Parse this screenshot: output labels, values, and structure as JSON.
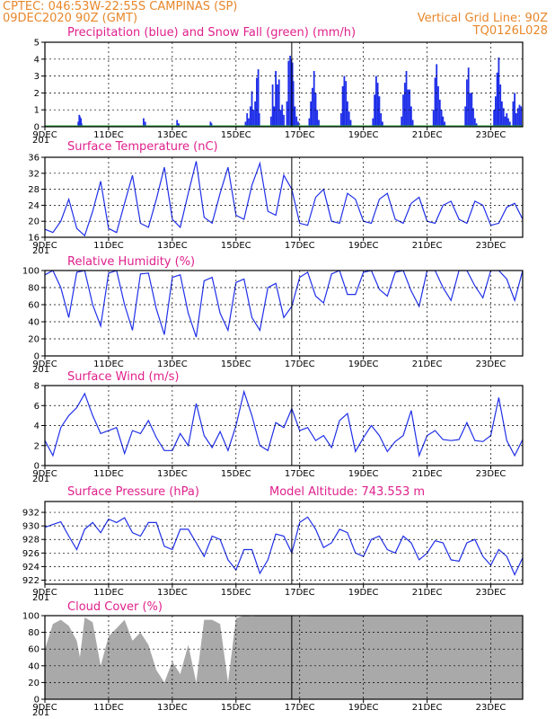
{
  "header": {
    "line1": "CPTEC:   046:53W-22:55S   CAMPINAS (SP)",
    "line2_left": "09DEC2020 90Z (GMT)",
    "line2_right": "Vertical Grid Line: 90Z",
    "line3_right": "TQ0126L028"
  },
  "colors": {
    "series": "#1f2fe8",
    "snow": "#21a83a",
    "cloud": "#a9a9a9",
    "title": "#e0208c",
    "header": "#e8872a"
  },
  "x_ticks": [
    "9DEC",
    "11DEC",
    "13DEC",
    "15DEC",
    "17DEC",
    "19DEC",
    "21DEC",
    "23DEC"
  ],
  "x_tick_days": [
    0,
    2,
    4,
    6,
    8,
    10,
    12,
    14
  ],
  "cut_label": "201",
  "vertical_marker_day": 7.75,
  "chart_data": [
    {
      "type": "bar",
      "title": "Precipitation (blue) and Snow Fall (green) (mm/h)",
      "ylim": [
        0,
        5
      ],
      "yticks": [
        0,
        1,
        2,
        3,
        4,
        5
      ],
      "series": [
        {
          "name": "Precipitation",
          "x": [
            1.05,
            1.08,
            1.1,
            1.13,
            1.15,
            3.1,
            3.15,
            4.15,
            4.2,
            5.2,
            5.23,
            6.3,
            6.35,
            6.4,
            6.45,
            6.5,
            6.55,
            6.6,
            6.65,
            6.7,
            6.73,
            7.1,
            7.15,
            7.2,
            7.25,
            7.3,
            7.35,
            7.4,
            7.45,
            7.5,
            7.6,
            7.65,
            7.7,
            7.73,
            7.77,
            7.8,
            7.85,
            7.9,
            7.95,
            8.3,
            8.35,
            8.4,
            8.45,
            8.5,
            8.55,
            8.6,
            9.3,
            9.35,
            9.4,
            9.45,
            9.5,
            9.55,
            9.6,
            10.3,
            10.35,
            10.4,
            10.45,
            10.5,
            10.55,
            10.6,
            11.2,
            11.25,
            11.3,
            11.35,
            11.4,
            11.45,
            11.5,
            11.55,
            12.2,
            12.25,
            12.3,
            12.35,
            12.4,
            12.45,
            12.5,
            12.55,
            13.2,
            13.25,
            13.3,
            13.35,
            13.4,
            13.45,
            13.5,
            13.55,
            14.1,
            14.15,
            14.2,
            14.25,
            14.3,
            14.35,
            14.4,
            14.45,
            14.5,
            14.55,
            14.6,
            14.7,
            14.75,
            14.8,
            14.85,
            14.9,
            14.95
          ],
          "values": [
            0.3,
            0.7,
            0.6,
            0.5,
            0.2,
            0.5,
            0.3,
            0.4,
            0.2,
            0.3,
            0.2,
            0.3,
            0.8,
            0.5,
            1.2,
            2.1,
            1.0,
            1.5,
            2.9,
            3.4,
            0.8,
            0.6,
            2.5,
            1.2,
            3.3,
            2.5,
            2.8,
            1.0,
            1.3,
            0.7,
            1.5,
            3.9,
            4.2,
            4.0,
            3.8,
            2.7,
            1.2,
            0.6,
            0.3,
            0.5,
            1.5,
            2.3,
            3.3,
            2.0,
            1.0,
            0.4,
            0.8,
            2.4,
            3.0,
            2.7,
            1.5,
            0.9,
            0.4,
            0.5,
            1.9,
            3.0,
            2.6,
            1.8,
            0.8,
            0.3,
            0.6,
            1.9,
            2.6,
            3.3,
            2.2,
            2.2,
            1.2,
            0.4,
            1.0,
            2.9,
            3.7,
            2.4,
            1.6,
            1.0,
            0.6,
            0.3,
            1.2,
            2.8,
            3.5,
            2.0,
            2.0,
            1.1,
            0.5,
            0.2,
            1.0,
            1.8,
            3.2,
            4.1,
            2.5,
            1.5,
            1.1,
            0.6,
            0.8,
            0.5,
            0.3,
            1.5,
            2.0,
            0.8,
            1.1,
            1.3,
            1.2
          ]
        },
        {
          "name": "Snow Fall",
          "x": [
            0.0,
            15.0
          ],
          "values": [
            0.0,
            0.0
          ]
        }
      ]
    },
    {
      "type": "line",
      "title": "Surface Temperature (nC)",
      "ylim": [
        16,
        36
      ],
      "yticks": [
        16,
        20,
        24,
        28,
        32,
        36
      ],
      "x": [
        0,
        0.25,
        0.5,
        0.75,
        1.0,
        1.25,
        1.5,
        1.75,
        2.0,
        2.25,
        2.5,
        2.75,
        3.0,
        3.25,
        3.5,
        3.75,
        4.0,
        4.25,
        4.5,
        4.75,
        5.0,
        5.25,
        5.5,
        5.75,
        6.0,
        6.25,
        6.5,
        6.75,
        7.0,
        7.25,
        7.5,
        7.75,
        8.0,
        8.25,
        8.5,
        8.75,
        9.0,
        9.25,
        9.5,
        9.75,
        10.0,
        10.25,
        10.5,
        10.75,
        11.0,
        11.25,
        11.5,
        11.75,
        12.0,
        12.25,
        12.5,
        12.75,
        13.0,
        13.25,
        13.5,
        13.75,
        14.0,
        14.25,
        14.5,
        14.75,
        15.0
      ],
      "values": [
        18,
        17.2,
        20,
        25.5,
        18.2,
        16.4,
        22.5,
        30,
        18.2,
        17.2,
        24.5,
        31.5,
        19.5,
        18.5,
        25.5,
        33.5,
        20.5,
        18.5,
        27,
        35,
        21,
        19.5,
        27,
        33.5,
        21.5,
        20.5,
        29,
        34.5,
        22.5,
        21.5,
        31.5,
        28,
        19.5,
        19,
        26,
        28,
        20,
        19.5,
        27,
        25.5,
        20,
        19.5,
        25.5,
        27,
        20.5,
        19.5,
        24.5,
        26,
        20,
        19.5,
        24,
        25,
        20.5,
        19.5,
        25,
        24,
        19,
        19.5,
        23.5,
        24.5,
        20.5
      ]
    },
    {
      "type": "line",
      "title": "Relative Humidity (%)",
      "ylim": [
        0,
        100
      ],
      "yticks": [
        0,
        20,
        40,
        60,
        80,
        100
      ],
      "x": [
        0,
        0.25,
        0.5,
        0.75,
        1.0,
        1.25,
        1.5,
        1.75,
        2.0,
        2.25,
        2.5,
        2.75,
        3.0,
        3.25,
        3.5,
        3.75,
        4.0,
        4.25,
        4.5,
        4.75,
        5.0,
        5.25,
        5.5,
        5.75,
        6.0,
        6.25,
        6.5,
        6.75,
        7.0,
        7.25,
        7.5,
        7.75,
        8.0,
        8.25,
        8.5,
        8.75,
        9.0,
        9.25,
        9.5,
        9.75,
        10.0,
        10.25,
        10.5,
        10.75,
        11.0,
        11.25,
        11.5,
        11.75,
        12.0,
        12.25,
        12.5,
        12.75,
        13.0,
        13.25,
        13.5,
        13.75,
        14.0,
        14.25,
        14.5,
        14.75,
        15.0
      ],
      "values": [
        95,
        100,
        80,
        45,
        98,
        100,
        60,
        35,
        97,
        100,
        60,
        30,
        96,
        97,
        55,
        25,
        92,
        95,
        50,
        22,
        88,
        92,
        50,
        30,
        86,
        90,
        45,
        30,
        80,
        85,
        45,
        58,
        92,
        98,
        70,
        62,
        96,
        100,
        72,
        72,
        98,
        100,
        78,
        70,
        98,
        100,
        76,
        58,
        100,
        100,
        80,
        65,
        100,
        100,
        82,
        68,
        100,
        100,
        90,
        65,
        100
      ]
    },
    {
      "type": "line",
      "title": "Surface Wind (m/s)",
      "ylim": [
        0,
        8
      ],
      "yticks": [
        0,
        2,
        4,
        6,
        8
      ],
      "x": [
        0,
        0.25,
        0.5,
        0.75,
        1.0,
        1.25,
        1.5,
        1.75,
        2.0,
        2.25,
        2.5,
        2.75,
        3.0,
        3.25,
        3.5,
        3.75,
        4.0,
        4.25,
        4.5,
        4.75,
        5.0,
        5.25,
        5.5,
        5.75,
        6.0,
        6.25,
        6.5,
        6.75,
        7.0,
        7.25,
        7.5,
        7.75,
        8.0,
        8.25,
        8.5,
        8.75,
        9.0,
        9.25,
        9.5,
        9.75,
        10.0,
        10.25,
        10.5,
        10.75,
        11.0,
        11.25,
        11.5,
        11.75,
        12.0,
        12.25,
        12.5,
        12.75,
        13.0,
        13.25,
        13.5,
        13.75,
        14.0,
        14.25,
        14.5,
        14.75,
        15.0
      ],
      "values": [
        2.5,
        1.0,
        3.8,
        5.0,
        5.8,
        7.2,
        5.0,
        3.2,
        3.5,
        3.8,
        1.2,
        3.5,
        3.2,
        4.5,
        2.8,
        1.5,
        1.5,
        3.2,
        2.0,
        6.2,
        3.0,
        1.8,
        3.4,
        1.5,
        4.0,
        7.4,
        5.0,
        2.0,
        1.5,
        4.3,
        3.8,
        5.7,
        3.5,
        3.8,
        2.5,
        3.0,
        1.8,
        4.5,
        5.2,
        1.4,
        2.8,
        4.0,
        3.0,
        1.4,
        2.4,
        3.0,
        5.5,
        1.0,
        3.0,
        3.5,
        2.6,
        2.5,
        2.6,
        4.3,
        2.5,
        2.4,
        3.0,
        6.8,
        2.5,
        1.0,
        2.6
      ]
    },
    {
      "type": "line",
      "title": "Surface Pressure (hPa)",
      "subtitle": "Model Altitude: 743.553 m",
      "ylim": [
        921.4,
        933.6
      ],
      "yticks": [
        922,
        924,
        926,
        928,
        930,
        932
      ],
      "x": [
        0,
        0.25,
        0.5,
        0.75,
        1.0,
        1.25,
        1.5,
        1.75,
        2.0,
        2.25,
        2.5,
        2.75,
        3.0,
        3.25,
        3.5,
        3.75,
        4.0,
        4.25,
        4.5,
        4.75,
        5.0,
        5.25,
        5.5,
        5.75,
        6.0,
        6.25,
        6.5,
        6.75,
        7.0,
        7.25,
        7.5,
        7.75,
        8.0,
        8.25,
        8.5,
        8.75,
        9.0,
        9.25,
        9.5,
        9.75,
        10.0,
        10.25,
        10.5,
        10.75,
        11.0,
        11.25,
        11.5,
        11.75,
        12.0,
        12.25,
        12.5,
        12.75,
        13.0,
        13.25,
        13.5,
        13.75,
        14.0,
        14.25,
        14.5,
        14.75,
        15.0
      ],
      "values": [
        929.8,
        930.2,
        930.6,
        928.5,
        926.5,
        929.5,
        930.5,
        929.0,
        931.0,
        930.5,
        931.2,
        929.0,
        928.5,
        930.5,
        930.5,
        927.0,
        926.5,
        929.5,
        929.5,
        927.5,
        925.5,
        928.5,
        928.0,
        925.0,
        923.5,
        926.5,
        926.5,
        923.0,
        925.0,
        928.8,
        928.5,
        926.0,
        930.5,
        931.3,
        929.5,
        926.8,
        927.5,
        929.5,
        929.0,
        926.0,
        925.5,
        928.0,
        928.5,
        926.5,
        926.0,
        928.5,
        927.5,
        925.0,
        926.0,
        927.8,
        927.5,
        925.0,
        924.8,
        927.5,
        928.0,
        925.5,
        924.2,
        926.5,
        925.5,
        922.8,
        925.3
      ]
    },
    {
      "type": "area",
      "title": "Cloud Cover (%)",
      "ylim": [
        0,
        100
      ],
      "yticks": [
        0,
        20,
        40,
        60,
        80,
        100
      ],
      "x": [
        0,
        0.25,
        0.5,
        0.75,
        1.0,
        1.1,
        1.25,
        1.5,
        1.75,
        2.0,
        2.25,
        2.5,
        2.75,
        3.0,
        3.25,
        3.5,
        3.75,
        4.0,
        4.25,
        4.5,
        4.75,
        5.0,
        5.25,
        5.5,
        5.75,
        6.0,
        6.25,
        6.5,
        6.75,
        7.0,
        8.0,
        9.0,
        10.0,
        11.0,
        12.0,
        13.0,
        14.0,
        15.0
      ],
      "values": [
        60,
        90,
        95,
        88,
        70,
        50,
        98,
        92,
        40,
        75,
        85,
        95,
        70,
        80,
        65,
        35,
        20,
        45,
        30,
        65,
        20,
        95,
        95,
        90,
        20,
        97,
        100,
        99,
        100,
        100,
        99,
        100,
        100,
        100,
        100,
        100,
        100,
        100
      ]
    }
  ]
}
